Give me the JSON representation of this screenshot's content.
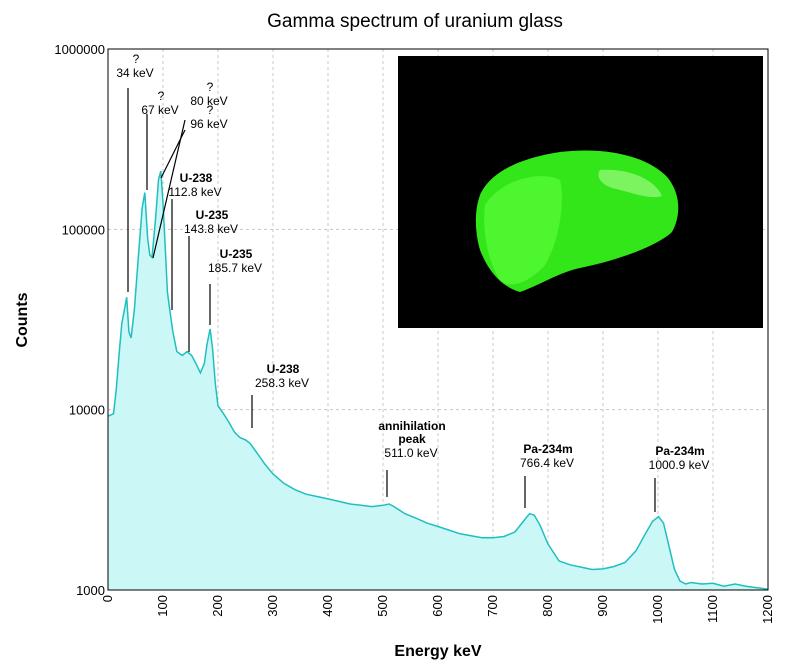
{
  "colors": {
    "line": "#1fbfbf",
    "fill": "#ccf7f7",
    "grid": "#c8c8c8",
    "inset_background": "#000000",
    "glass": "#33e61a"
  },
  "inset_image": {
    "subject": "uranium-glass-piece-photo"
  },
  "chart_data": {
    "type": "area",
    "title": "Gamma spectrum of uranium glass",
    "xlabel": "Energy keV",
    "ylabel": "Counts",
    "xlim": [
      0,
      1200
    ],
    "ylim": [
      1000,
      1000000
    ],
    "yscale": "log",
    "grid": true,
    "x_ticks": [
      0,
      100,
      200,
      300,
      400,
      500,
      600,
      700,
      800,
      900,
      1000,
      1100,
      1200
    ],
    "x_tick_labels": [
      "0",
      "100",
      "200",
      "300",
      "400",
      "500",
      "600",
      "700",
      "800",
      "900",
      "1000",
      "1100",
      "1200"
    ],
    "y_ticks": [
      1000,
      10000,
      100000,
      1000000
    ],
    "y_tick_labels": [
      "1000",
      "10000",
      "100000",
      "1000000"
    ],
    "spectrum": {
      "x": [
        0,
        10,
        15,
        20,
        25,
        30,
        34,
        38,
        42,
        48,
        55,
        62,
        67,
        72,
        76,
        80,
        86,
        92,
        96,
        100,
        104,
        108,
        112.8,
        118,
        125,
        135,
        143.8,
        152,
        160,
        168,
        175,
        180,
        185.7,
        190,
        195,
        200,
        210,
        220,
        230,
        240,
        250,
        258.3,
        270,
        285,
        300,
        320,
        340,
        360,
        380,
        400,
        420,
        440,
        460,
        480,
        500,
        511,
        520,
        540,
        560,
        580,
        600,
        620,
        640,
        660,
        680,
        700,
        720,
        740,
        755,
        766.4,
        775,
        785,
        800,
        820,
        840,
        860,
        880,
        900,
        920,
        940,
        960,
        975,
        990,
        1000.9,
        1010,
        1020,
        1030,
        1040,
        1050,
        1060,
        1080,
        1100,
        1120,
        1140,
        1160,
        1180,
        1200
      ],
      "y": [
        9200,
        9500,
        13000,
        20000,
        30000,
        36000,
        42000,
        27000,
        25000,
        36000,
        70000,
        130000,
        160000,
        90000,
        72000,
        70000,
        110000,
        190000,
        210000,
        140000,
        80000,
        45000,
        35000,
        27000,
        21000,
        20000,
        21000,
        20000,
        18000,
        16000,
        18000,
        23000,
        28000,
        22000,
        14000,
        10500,
        9500,
        8500,
        7500,
        7000,
        6800,
        6500,
        5800,
        5000,
        4400,
        3900,
        3600,
        3400,
        3300,
        3200,
        3100,
        3000,
        2950,
        2900,
        2950,
        3000,
        2900,
        2650,
        2500,
        2350,
        2250,
        2150,
        2050,
        2000,
        1950,
        1950,
        1980,
        2100,
        2400,
        2650,
        2600,
        2300,
        1800,
        1450,
        1380,
        1340,
        1300,
        1310,
        1350,
        1420,
        1650,
        2000,
        2400,
        2550,
        2350,
        1750,
        1300,
        1120,
        1080,
        1100,
        1080,
        1090,
        1050,
        1080,
        1050,
        1030,
        1010
      ]
    },
    "annotations": [
      {
        "name": "?",
        "energy": "34 keV",
        "x": 34
      },
      {
        "name": "?",
        "energy": "67 keV",
        "x": 67
      },
      {
        "name": "?",
        "energy": "80 keV",
        "x": 80
      },
      {
        "name": "?",
        "energy": "96 keV",
        "x": 96
      },
      {
        "name": "U-238",
        "energy": "112.8 keV",
        "x": 112.8
      },
      {
        "name": "U-235",
        "energy": "143.8 keV",
        "x": 143.8
      },
      {
        "name": "U-235",
        "energy": "185.7 keV",
        "x": 185.7
      },
      {
        "name": "U-238",
        "energy": "258.3 keV",
        "x": 258.3
      },
      {
        "name": "annihilation\npeak",
        "energy": "511.0 keV",
        "x": 511.0
      },
      {
        "name": "Pa-234m",
        "energy": "766.4 keV",
        "x": 766.4
      },
      {
        "name": "Pa-234m",
        "energy": "1000.9 keV",
        "x": 1000.9
      }
    ]
  }
}
